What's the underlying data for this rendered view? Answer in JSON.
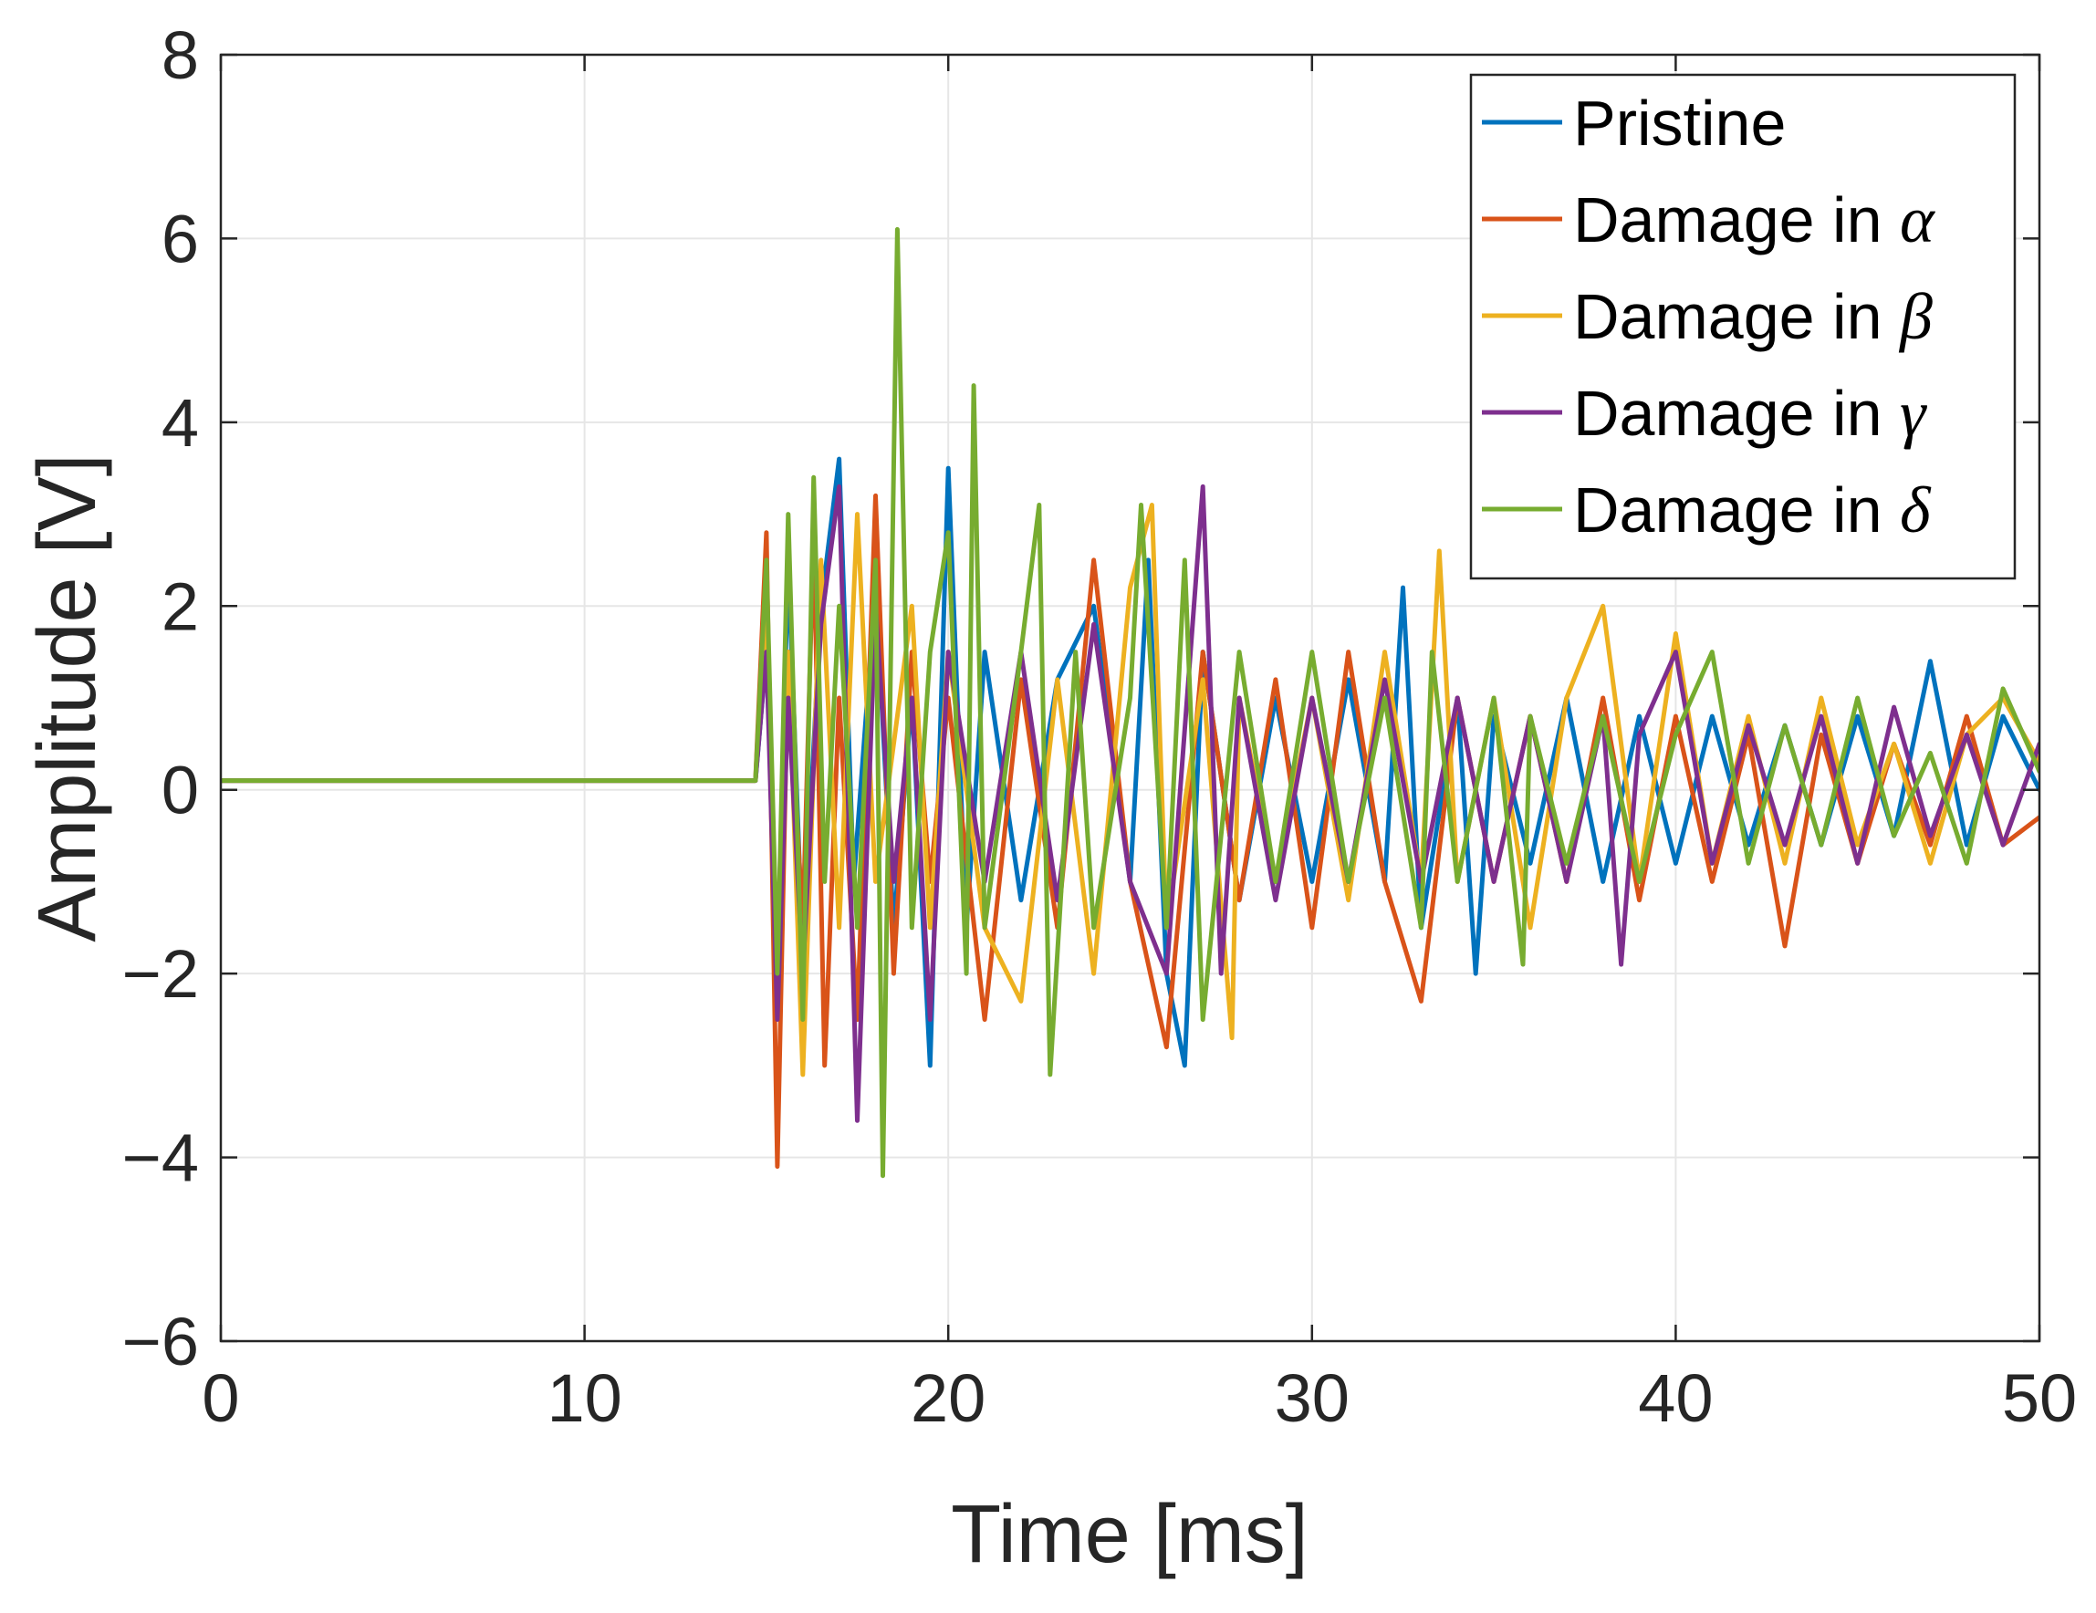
{
  "chart_data": {
    "type": "line",
    "title": "",
    "xlabel": "Time [ms]",
    "ylabel": "Amplitude [V]",
    "xlim": [
      0,
      50
    ],
    "ylim": [
      -6,
      8
    ],
    "xticks": [
      0,
      10,
      20,
      30,
      40,
      50
    ],
    "yticks": [
      -6,
      -4,
      -2,
      0,
      2,
      4,
      6,
      8
    ],
    "xtick_labels": [
      "0",
      "10",
      "20",
      "30",
      "40",
      "50"
    ],
    "ytick_labels": [
      "−6",
      "−4",
      "−2",
      "0",
      "2",
      "4",
      "6",
      "8"
    ],
    "grid": true,
    "legend_position": "top-right",
    "series": [
      {
        "name": "Pristine",
        "name_main": "Pristine",
        "name_symbol": "",
        "color": "#0072BD",
        "points": [
          [
            0,
            0.1
          ],
          [
            14.7,
            0.1
          ],
          [
            15.0,
            1.5
          ],
          [
            15.3,
            -2.0
          ],
          [
            15.6,
            2.5
          ],
          [
            16.0,
            -1.8
          ],
          [
            16.5,
            2.0
          ],
          [
            17.0,
            3.6
          ],
          [
            17.4,
            -1.0
          ],
          [
            18.0,
            2.2
          ],
          [
            18.5,
            -1.5
          ],
          [
            19.0,
            1.0
          ],
          [
            19.5,
            -3.0
          ],
          [
            20.0,
            3.5
          ],
          [
            20.5,
            -1.5
          ],
          [
            21.0,
            1.5
          ],
          [
            22.0,
            -1.2
          ],
          [
            23.0,
            1.2
          ],
          [
            24.0,
            2.0
          ],
          [
            25.0,
            -1.0
          ],
          [
            25.5,
            2.5
          ],
          [
            26.0,
            -2.0
          ],
          [
            26.5,
            -3.0
          ],
          [
            27.0,
            1.5
          ],
          [
            28.0,
            -1.2
          ],
          [
            29.0,
            1.0
          ],
          [
            30.0,
            -1.0
          ],
          [
            31.0,
            1.2
          ],
          [
            32.0,
            -1.0
          ],
          [
            32.5,
            2.2
          ],
          [
            33.0,
            -1.5
          ],
          [
            34.0,
            1.0
          ],
          [
            34.5,
            -2.0
          ],
          [
            35.0,
            0.8
          ],
          [
            36.0,
            -0.8
          ],
          [
            37.0,
            1.0
          ],
          [
            38.0,
            -1.0
          ],
          [
            39.0,
            0.8
          ],
          [
            40.0,
            -0.8
          ],
          [
            41.0,
            0.8
          ],
          [
            42.0,
            -0.6
          ],
          [
            43.0,
            0.7
          ],
          [
            44.0,
            -0.6
          ],
          [
            45.0,
            0.8
          ],
          [
            46.0,
            -0.5
          ],
          [
            47.0,
            1.4
          ],
          [
            48.0,
            -0.6
          ],
          [
            49.0,
            0.8
          ],
          [
            50.0,
            0.0
          ]
        ]
      },
      {
        "name": "Damage in α",
        "name_main": "Damage in ",
        "name_symbol": "α",
        "color": "#D95319",
        "points": [
          [
            0,
            0.1
          ],
          [
            14.7,
            0.1
          ],
          [
            15.0,
            2.8
          ],
          [
            15.3,
            -4.1
          ],
          [
            15.6,
            1.5
          ],
          [
            16.0,
            -1.5
          ],
          [
            16.3,
            2.8
          ],
          [
            16.6,
            -3.0
          ],
          [
            17.0,
            1.0
          ],
          [
            17.5,
            -2.5
          ],
          [
            18.0,
            3.2
          ],
          [
            18.5,
            -2.0
          ],
          [
            19.0,
            1.5
          ],
          [
            19.5,
            -1.0
          ],
          [
            20.0,
            1.0
          ],
          [
            21.0,
            -2.5
          ],
          [
            22.0,
            1.2
          ],
          [
            23.0,
            -1.5
          ],
          [
            24.0,
            2.5
          ],
          [
            25.0,
            -1.0
          ],
          [
            26.0,
            -2.8
          ],
          [
            27.0,
            1.5
          ],
          [
            28.0,
            -1.2
          ],
          [
            29.0,
            1.2
          ],
          [
            30.0,
            -1.5
          ],
          [
            31.0,
            1.5
          ],
          [
            32.0,
            -1.0
          ],
          [
            33.0,
            -2.3
          ],
          [
            34.0,
            1.0
          ],
          [
            35.0,
            -1.0
          ],
          [
            36.0,
            0.8
          ],
          [
            37.0,
            -1.0
          ],
          [
            38.0,
            1.0
          ],
          [
            39.0,
            -1.2
          ],
          [
            40.0,
            0.8
          ],
          [
            41.0,
            -1.0
          ],
          [
            42.0,
            0.6
          ],
          [
            43.0,
            -1.7
          ],
          [
            44.0,
            0.6
          ],
          [
            45.0,
            -0.8
          ],
          [
            46.0,
            0.5
          ],
          [
            47.0,
            -0.6
          ],
          [
            48.0,
            0.8
          ],
          [
            49.0,
            -0.6
          ],
          [
            50.0,
            -0.3
          ]
        ]
      },
      {
        "name": "Damage in β",
        "name_main": "Damage in ",
        "name_symbol": "β",
        "color": "#EDB120",
        "points": [
          [
            0,
            0.1
          ],
          [
            14.7,
            0.1
          ],
          [
            15.0,
            2.0
          ],
          [
            15.3,
            -2.0
          ],
          [
            15.6,
            1.5
          ],
          [
            16.0,
            -3.1
          ],
          [
            16.5,
            2.5
          ],
          [
            17.0,
            -1.5
          ],
          [
            17.5,
            3.0
          ],
          [
            18.0,
            -1.0
          ],
          [
            19.0,
            2.0
          ],
          [
            19.5,
            -1.5
          ],
          [
            20.0,
            1.5
          ],
          [
            21.0,
            -1.5
          ],
          [
            22.0,
            -2.3
          ],
          [
            23.0,
            1.2
          ],
          [
            24.0,
            -2.0
          ],
          [
            25.0,
            2.2
          ],
          [
            25.6,
            3.1
          ],
          [
            26.0,
            -1.5
          ],
          [
            27.0,
            1.2
          ],
          [
            27.8,
            -2.7
          ],
          [
            28.0,
            1.0
          ],
          [
            29.0,
            -1.0
          ],
          [
            30.0,
            1.0
          ],
          [
            31.0,
            -1.2
          ],
          [
            32.0,
            1.5
          ],
          [
            33.0,
            -1.0
          ],
          [
            33.5,
            2.6
          ],
          [
            34.0,
            -1.0
          ],
          [
            35.0,
            1.0
          ],
          [
            36.0,
            -1.5
          ],
          [
            37.0,
            1.0
          ],
          [
            38.0,
            2.0
          ],
          [
            39.0,
            -1.0
          ],
          [
            40.0,
            1.7
          ],
          [
            41.0,
            -0.8
          ],
          [
            42.0,
            0.8
          ],
          [
            43.0,
            -0.8
          ],
          [
            44.0,
            1.0
          ],
          [
            45.0,
            -0.6
          ],
          [
            46.0,
            0.5
          ],
          [
            47.0,
            -0.8
          ],
          [
            48.0,
            0.6
          ],
          [
            49.0,
            1.0
          ],
          [
            50.0,
            0.3
          ]
        ]
      },
      {
        "name": "Damage in γ",
        "name_main": "Damage in ",
        "name_symbol": "γ",
        "color": "#7E2F8E",
        "points": [
          [
            0,
            0.1
          ],
          [
            14.7,
            0.1
          ],
          [
            15.0,
            1.5
          ],
          [
            15.3,
            -2.5
          ],
          [
            15.6,
            1.0
          ],
          [
            16.0,
            -2.0
          ],
          [
            16.5,
            1.8
          ],
          [
            17.0,
            3.3
          ],
          [
            17.5,
            -3.6
          ],
          [
            18.0,
            2.0
          ],
          [
            18.5,
            -1.0
          ],
          [
            19.0,
            1.0
          ],
          [
            19.5,
            -2.5
          ],
          [
            20.0,
            1.5
          ],
          [
            21.0,
            -1.0
          ],
          [
            22.0,
            1.5
          ],
          [
            23.0,
            -1.2
          ],
          [
            24.0,
            1.8
          ],
          [
            25.0,
            -1.0
          ],
          [
            26.0,
            -2.0
          ],
          [
            27.0,
            3.3
          ],
          [
            27.5,
            -2.0
          ],
          [
            28.0,
            1.0
          ],
          [
            29.0,
            -1.2
          ],
          [
            30.0,
            1.0
          ],
          [
            31.0,
            -1.0
          ],
          [
            32.0,
            1.2
          ],
          [
            33.0,
            -1.0
          ],
          [
            34.0,
            1.0
          ],
          [
            35.0,
            -1.0
          ],
          [
            36.0,
            0.8
          ],
          [
            37.0,
            -1.0
          ],
          [
            38.0,
            0.8
          ],
          [
            38.5,
            -1.9
          ],
          [
            39.0,
            0.6
          ],
          [
            40.0,
            1.5
          ],
          [
            41.0,
            -0.8
          ],
          [
            42.0,
            0.7
          ],
          [
            43.0,
            -0.6
          ],
          [
            44.0,
            0.8
          ],
          [
            45.0,
            -0.8
          ],
          [
            46.0,
            0.9
          ],
          [
            47.0,
            -0.5
          ],
          [
            48.0,
            0.6
          ],
          [
            49.0,
            -0.6
          ],
          [
            50.0,
            0.5
          ]
        ]
      },
      {
        "name": "Damage in δ",
        "name_main": "Damage in ",
        "name_symbol": "δ",
        "color": "#77AC30",
        "points": [
          [
            0,
            0.1
          ],
          [
            14.7,
            0.1
          ],
          [
            15.0,
            2.5
          ],
          [
            15.3,
            -2.0
          ],
          [
            15.6,
            3.0
          ],
          [
            16.0,
            -2.5
          ],
          [
            16.3,
            3.4
          ],
          [
            16.6,
            -1.0
          ],
          [
            17.0,
            2.0
          ],
          [
            17.5,
            -1.5
          ],
          [
            18.0,
            2.5
          ],
          [
            18.2,
            -4.2
          ],
          [
            18.6,
            6.1
          ],
          [
            19.0,
            -1.5
          ],
          [
            19.5,
            1.5
          ],
          [
            20.0,
            2.8
          ],
          [
            20.5,
            -2.0
          ],
          [
            20.7,
            4.4
          ],
          [
            21.0,
            -1.5
          ],
          [
            22.0,
            1.5
          ],
          [
            22.5,
            3.1
          ],
          [
            22.8,
            -3.1
          ],
          [
            23.5,
            1.5
          ],
          [
            24.0,
            -1.5
          ],
          [
            25.0,
            1.0
          ],
          [
            25.3,
            3.1
          ],
          [
            26.0,
            -1.5
          ],
          [
            26.5,
            2.5
          ],
          [
            27.0,
            -2.5
          ],
          [
            28.0,
            1.5
          ],
          [
            29.0,
            -1.0
          ],
          [
            30.0,
            1.5
          ],
          [
            31.0,
            -1.0
          ],
          [
            32.0,
            1.0
          ],
          [
            33.0,
            -1.5
          ],
          [
            33.3,
            1.5
          ],
          [
            34.0,
            -1.0
          ],
          [
            35.0,
            1.0
          ],
          [
            35.8,
            -1.9
          ],
          [
            36.0,
            0.8
          ],
          [
            37.0,
            -0.8
          ],
          [
            38.0,
            0.8
          ],
          [
            39.0,
            -1.0
          ],
          [
            40.0,
            0.6
          ],
          [
            41.0,
            1.5
          ],
          [
            42.0,
            -0.8
          ],
          [
            43.0,
            0.7
          ],
          [
            44.0,
            -0.6
          ],
          [
            45.0,
            1.0
          ],
          [
            46.0,
            -0.5
          ],
          [
            47.0,
            0.4
          ],
          [
            48.0,
            -0.8
          ],
          [
            49.0,
            1.1
          ],
          [
            50.0,
            0.2
          ]
        ]
      }
    ]
  }
}
